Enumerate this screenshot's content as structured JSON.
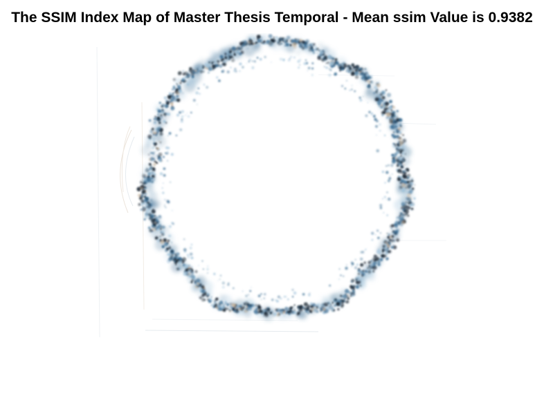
{
  "figure": {
    "title": "The SSIM Index Map of Master Thesis Temporal - Mean ssim Value is 0.9382"
  },
  "image": {
    "description_shape": "ring",
    "colors": {
      "background": "#ffffff",
      "ring_dark": "#1a2633",
      "ring_blue": "#3d6f95",
      "ring_light": "#9fc2da",
      "faint_tan": "#c9b49a"
    }
  }
}
